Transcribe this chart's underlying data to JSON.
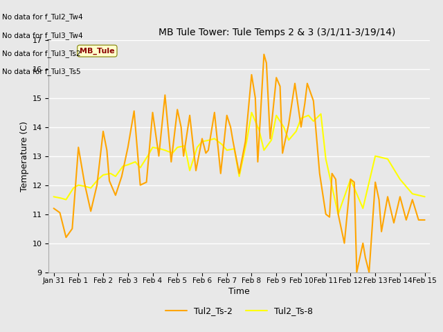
{
  "title": "MB Tule Tower: Tule Temps 2 & 3 (3/1/11-3/19/14)",
  "xlabel": "Time",
  "ylabel": "Temperature (C)",
  "ylim": [
    9.0,
    17.0
  ],
  "yticks": [
    9.0,
    10.0,
    11.0,
    12.0,
    13.0,
    14.0,
    15.0,
    16.0,
    17.0
  ],
  "plot_bg_color": "#e8e8e8",
  "fig_bg_color": "#e8e8e8",
  "grid_color": "#ffffff",
  "series1_color": "#FFA500",
  "series2_color": "#FFFF00",
  "series1_label": "Tul2_Ts-2",
  "series2_label": "Tul2_Ts-8",
  "series1_lw": 1.5,
  "series2_lw": 1.5,
  "series1_x": [
    0,
    0.25,
    0.5,
    0.75,
    1.0,
    1.25,
    1.5,
    1.75,
    2.0,
    2.15,
    2.25,
    2.5,
    2.75,
    3.0,
    3.25,
    3.5,
    3.75,
    4.0,
    4.25,
    4.5,
    4.75,
    5.0,
    5.15,
    5.25,
    5.5,
    5.75,
    6.0,
    6.15,
    6.25,
    6.5,
    6.75,
    7.0,
    7.15,
    7.25,
    7.5,
    7.75,
    8.0,
    8.15,
    8.25,
    8.5,
    8.6,
    8.75,
    9.0,
    9.15,
    9.25,
    9.5,
    9.75,
    10.0,
    10.15,
    10.25,
    10.5,
    10.75,
    11.0,
    11.15,
    11.25,
    11.4,
    11.5,
    11.75,
    12.0,
    12.15,
    12.25,
    12.5,
    12.6,
    12.75,
    13.0,
    13.15,
    13.25,
    13.5,
    13.75,
    14.0,
    14.25,
    14.5,
    14.75,
    15.0
  ],
  "series1_y": [
    11.2,
    11.05,
    10.2,
    10.5,
    13.3,
    12.05,
    11.1,
    12.0,
    13.85,
    13.2,
    12.15,
    11.65,
    12.3,
    13.3,
    14.55,
    12.0,
    12.1,
    14.5,
    13.0,
    15.1,
    12.8,
    14.6,
    14.0,
    13.0,
    14.4,
    12.5,
    13.6,
    13.1,
    13.2,
    14.5,
    12.4,
    14.4,
    14.0,
    13.5,
    12.4,
    13.5,
    15.8,
    15.0,
    12.8,
    16.5,
    16.2,
    13.6,
    15.7,
    15.4,
    13.1,
    14.1,
    15.5,
    14.0,
    14.8,
    15.5,
    14.9,
    12.4,
    11.0,
    10.9,
    12.4,
    12.2,
    11.0,
    10.0,
    12.2,
    12.1,
    9.0,
    10.0,
    9.5,
    9.0,
    12.1,
    11.5,
    10.4,
    11.6,
    10.7,
    11.6,
    10.8,
    11.5,
    10.8,
    10.8
  ],
  "series2_x": [
    0.0,
    0.3,
    0.5,
    0.8,
    1.0,
    1.3,
    1.5,
    1.8,
    2.0,
    2.3,
    2.5,
    2.8,
    3.0,
    3.3,
    3.5,
    3.8,
    4.0,
    4.3,
    4.5,
    4.8,
    5.0,
    5.3,
    5.5,
    5.8,
    6.0,
    6.3,
    6.5,
    6.8,
    7.0,
    7.3,
    7.5,
    7.8,
    8.0,
    8.3,
    8.5,
    8.8,
    9.0,
    9.3,
    9.5,
    9.8,
    10.0,
    10.3,
    10.5,
    10.8,
    11.0,
    11.5,
    12.0,
    12.5,
    13.0,
    13.5,
    14.0,
    14.5,
    15.0
  ],
  "series2_y": [
    11.6,
    11.55,
    11.5,
    11.9,
    12.0,
    11.95,
    11.9,
    12.2,
    12.35,
    12.4,
    12.3,
    12.65,
    12.7,
    12.8,
    12.6,
    13.0,
    13.3,
    13.25,
    13.2,
    13.1,
    13.3,
    13.35,
    12.5,
    13.3,
    13.5,
    13.55,
    13.6,
    13.4,
    13.2,
    13.25,
    12.3,
    13.5,
    14.5,
    13.9,
    13.2,
    13.55,
    14.4,
    14.0,
    13.55,
    13.85,
    14.3,
    14.4,
    14.2,
    14.45,
    12.9,
    11.0,
    12.2,
    11.2,
    13.0,
    12.9,
    12.2,
    11.7,
    11.6
  ],
  "xtick_labels": [
    "Jan 31",
    "Feb 1",
    "Feb 2",
    "Feb 3",
    "Feb 4",
    "Feb 5",
    "Feb 6",
    "Feb 7",
    "Feb 8",
    "Feb 9",
    "Feb 10",
    "Feb 11",
    "Feb 12",
    "Feb 13",
    "Feb 14",
    "Feb 15"
  ],
  "xtick_positions": [
    0,
    1,
    2,
    3,
    4,
    5,
    6,
    7,
    8,
    9,
    10,
    11,
    12,
    13,
    14,
    15
  ],
  "xlim": [
    -0.2,
    15.2
  ],
  "annot_lines": [
    "No data for f_Tul2_Tw4",
    "No data for f_Tul3_Tw4",
    "No data for f_Tul3_Ts2",
    "No data for f_Tul3_Ts5"
  ],
  "tooltip_text": "MB_Tule",
  "legend_handles_color1": "#FFA500",
  "legend_handles_color2": "#FFFF00"
}
